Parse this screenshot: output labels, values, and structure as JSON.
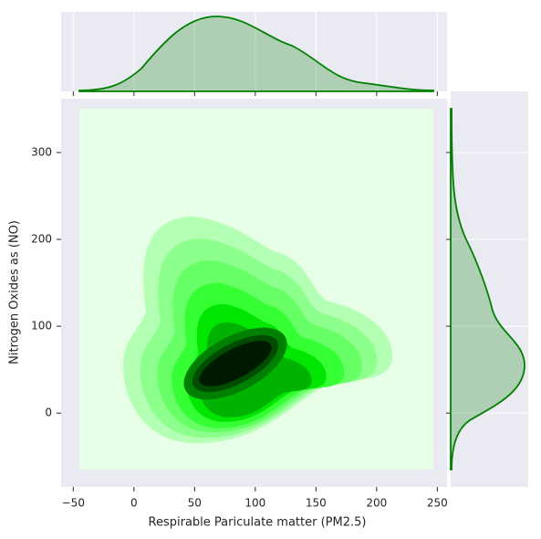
{
  "chart_data": {
    "type": "kde",
    "xlabel": "Respirable Pariculate matter (PM2.5)",
    "ylabel": "Nitrogen Oxides as (NO)",
    "color": "green",
    "xlim": [
      -60,
      258
    ],
    "ylim": [
      -85,
      362
    ],
    "xticks": [
      {
        "value": -50,
        "label": "−50"
      },
      0,
      50,
      100,
      150,
      200,
      250
    ],
    "yticks": [
      0,
      100,
      200,
      300
    ]
  }
}
